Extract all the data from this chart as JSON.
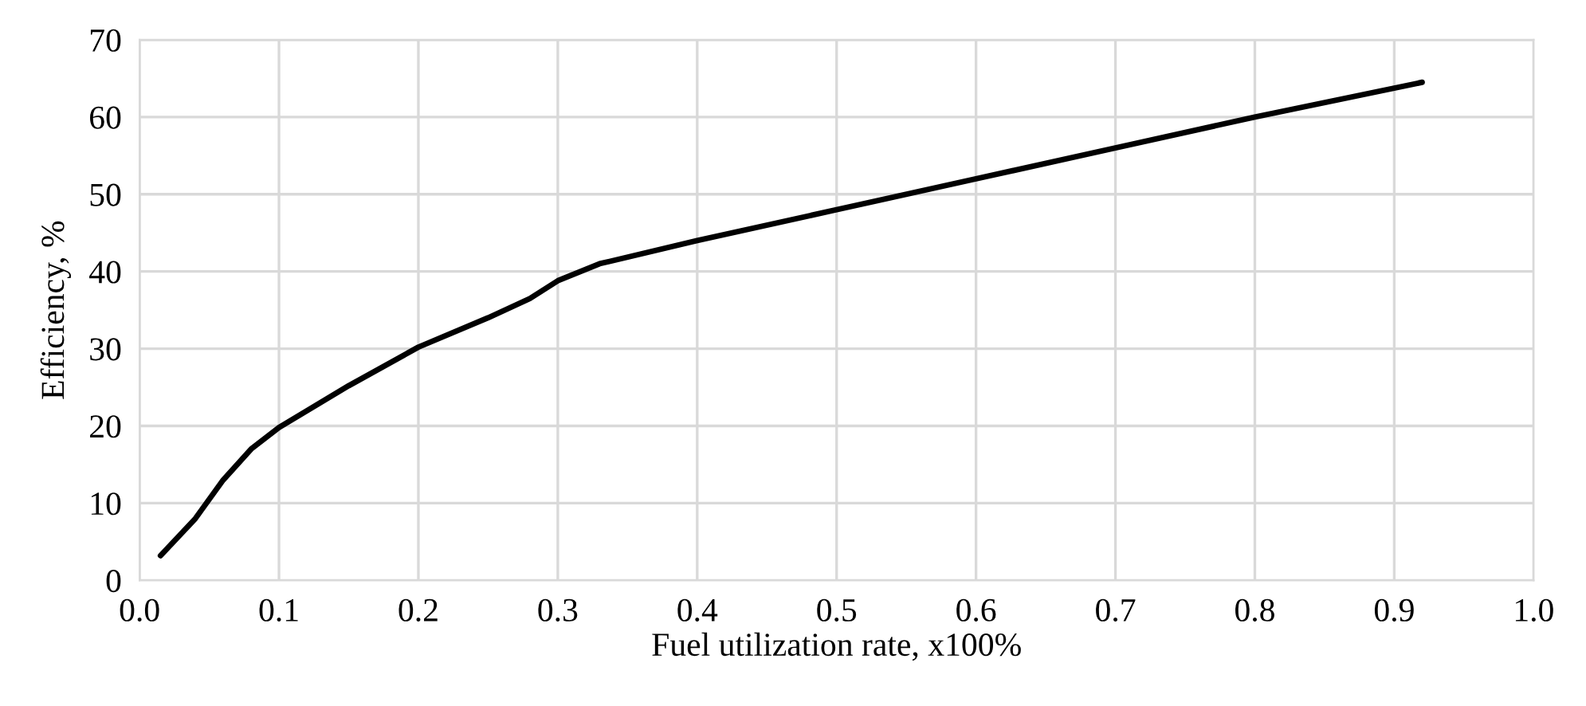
{
  "chart_data": {
    "type": "line",
    "xlabel": "Fuel utilization rate, x100%",
    "ylabel": "Efficiency, %",
    "series": [
      {
        "color": "#000000",
        "x": [
          0.015,
          0.04,
          0.06,
          0.08,
          0.1,
          0.15,
          0.2,
          0.25,
          0.28,
          0.3,
          0.33,
          0.4,
          0.5,
          0.6,
          0.7,
          0.8,
          0.92
        ],
        "values": [
          3.2,
          8,
          13,
          17,
          19.8,
          25.2,
          30.2,
          34,
          36.5,
          38.8,
          41,
          44,
          48,
          52,
          56,
          60,
          64.5
        ]
      }
    ],
    "xlim": [
      0,
      1
    ],
    "xticks": [
      {
        "value": 0,
        "label": "0.0"
      },
      0.1,
      0.2,
      0.3,
      0.4,
      0.5,
      0.6,
      0.7,
      0.8,
      0.9,
      {
        "value": 1,
        "label": "1.0"
      }
    ],
    "ylim": [
      0,
      70
    ],
    "yticks": [
      0,
      10,
      20,
      30,
      40,
      50,
      60,
      70
    ],
    "grid": true,
    "marker": "none",
    "line_style": "solid"
  }
}
